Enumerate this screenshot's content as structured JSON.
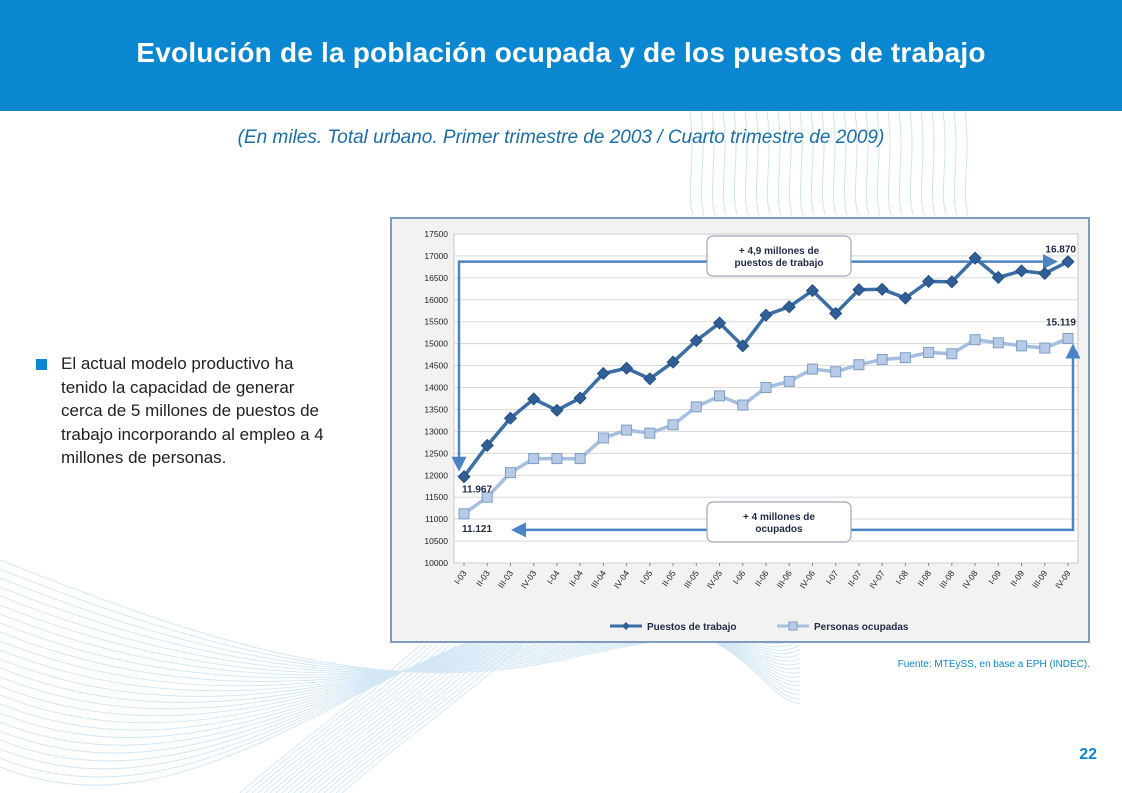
{
  "slide": {
    "title": "Evolución de la población ocupada y de los puestos de trabajo",
    "subtitle": "(En miles. Total urbano. Primer trimestre de 2003 / Cuarto trimestre de 2009)",
    "bullet": "El actual modelo productivo ha tenido la capacidad de generar cerca de 5 millones de puestos de trabajo incorporando al empleo a 4 millones de personas.",
    "source": "Fuente: MTEySS, en base a EPH (INDEC).",
    "page_number": "22"
  },
  "colors": {
    "header_blue": "#0a87d0",
    "series_puestos": "#3a6ea5",
    "series_personas": "#a6bfe0",
    "arrow": "#4a84c4"
  },
  "chart_data": {
    "type": "line",
    "title": "",
    "xlabel": "",
    "ylabel": "",
    "ylim": [
      10000,
      17500
    ],
    "yticks": [
      "17500",
      "17000",
      "16500",
      "16000",
      "15500",
      "15000",
      "14500",
      "14000",
      "13500",
      "13000",
      "12500",
      "12000",
      "11500",
      "11000",
      "10500",
      "10000"
    ],
    "grid": true,
    "legend": "bottom",
    "categories": [
      "I-03",
      "II-03",
      "III-03",
      "IV-03",
      "I-04",
      "II-04",
      "III-04",
      "IV-04",
      "I-05",
      "II-05",
      "III-05",
      "IV-05",
      "I-06",
      "II-06",
      "III-06",
      "IV-06",
      "I-07",
      "II-07",
      "IV-07",
      "I-08",
      "II-08",
      "III-08",
      "IV-08",
      "I-09",
      "II-09",
      "III-09",
      "IV-09"
    ],
    "series": [
      {
        "name": "Puestos de trabajo",
        "values": [
          11967,
          12680,
          13300,
          13740,
          13480,
          13760,
          14320,
          14440,
          14200,
          14580,
          15070,
          15470,
          14950,
          15650,
          15840,
          16210,
          15690,
          16230,
          16240,
          16040,
          16420,
          16410,
          16950,
          16510,
          16660,
          16600,
          16870
        ]
      },
      {
        "name": "Personas ocupadas",
        "values": [
          11121,
          11500,
          12060,
          12380,
          12380,
          12380,
          12850,
          13030,
          12960,
          13150,
          13560,
          13810,
          13600,
          14000,
          14140,
          14420,
          14360,
          14520,
          14640,
          14680,
          14800,
          14770,
          15090,
          15020,
          14950,
          14900,
          15119
        ]
      }
    ],
    "labels": {
      "puestos_start": "11.967",
      "puestos_end": "16.870",
      "personas_start": "11.121",
      "personas_end": "15.119"
    },
    "annotations": {
      "top_line1": "+ 4,9 millones de",
      "top_line2": "puestos de trabajo",
      "bottom_line1": "+ 4 millones de",
      "bottom_line2": "ocupados"
    }
  }
}
